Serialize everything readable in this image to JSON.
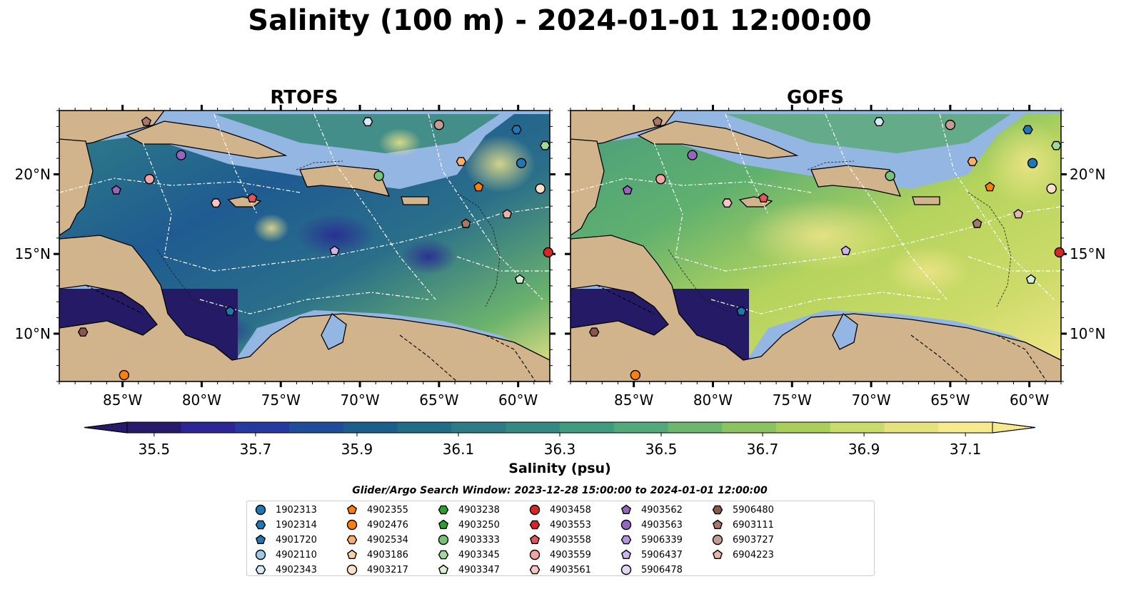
{
  "title": "Salinity (100 m) - 2024-01-01 12:00:00",
  "panels": [
    {
      "title": "RTOFS"
    },
    {
      "title": "GOFS"
    }
  ],
  "colorbar": {
    "label": "Salinity (psu)",
    "min": 35.5,
    "max": 37.1,
    "extend": "both",
    "tick_labels": [
      "35.5",
      "35.7",
      "35.9",
      "36.1",
      "36.3",
      "36.5",
      "36.7",
      "36.9",
      "37.1"
    ],
    "colors": [
      "#271a6c",
      "#2c2598",
      "#2639a0",
      "#1f4d99",
      "#1b5e8c",
      "#226d86",
      "#2d7b84",
      "#348a82",
      "#3f9a7e",
      "#52a878",
      "#6db66d",
      "#8ac35f",
      "#a9ce5a",
      "#c9db6a",
      "#e6e27e",
      "#f7e98d"
    ]
  },
  "search_window": "Glider/Argo Search Window: 2023-12-28 15:00:00 to 2024-01-01 12:00:00",
  "legend": [
    {
      "id": "1902313",
      "marker": "circle",
      "color": "#1f77b4"
    },
    {
      "id": "1902314",
      "marker": "hexagon",
      "color": "#1f77b4"
    },
    {
      "id": "4901720",
      "marker": "pentagon",
      "color": "#1f77b4"
    },
    {
      "id": "4902110",
      "marker": "circle",
      "color": "#9ecae9"
    },
    {
      "id": "4902343",
      "marker": "hexagon",
      "color": "#d6ebf7"
    },
    {
      "id": "4902355",
      "marker": "pentagon",
      "color": "#ff7f0e"
    },
    {
      "id": "4902476",
      "marker": "circle",
      "color": "#ff7f0e"
    },
    {
      "id": "4902534",
      "marker": "hexagon",
      "color": "#fdae6b"
    },
    {
      "id": "4903186",
      "marker": "pentagon",
      "color": "#fdd0a2"
    },
    {
      "id": "4903217",
      "marker": "circle",
      "color": "#fde0c5"
    },
    {
      "id": "4903238",
      "marker": "hexagon",
      "color": "#2ca02c"
    },
    {
      "id": "4903250",
      "marker": "pentagon",
      "color": "#2ca02c"
    },
    {
      "id": "4903333",
      "marker": "circle",
      "color": "#74c476"
    },
    {
      "id": "4903345",
      "marker": "hexagon",
      "color": "#a1d99b"
    },
    {
      "id": "4903347",
      "marker": "pentagon",
      "color": "#d9f0d3"
    },
    {
      "id": "4903458",
      "marker": "circle",
      "color": "#d62728"
    },
    {
      "id": "4903553",
      "marker": "hexagon",
      "color": "#d62728"
    },
    {
      "id": "4903558",
      "marker": "pentagon",
      "color": "#e15759"
    },
    {
      "id": "4903559",
      "marker": "circle",
      "color": "#f4a3a4"
    },
    {
      "id": "4903561",
      "marker": "hexagon",
      "color": "#fcc5c5"
    },
    {
      "id": "4903562",
      "marker": "pentagon",
      "color": "#9467bd"
    },
    {
      "id": "4903563",
      "marker": "circle",
      "color": "#9467bd"
    },
    {
      "id": "5906339",
      "marker": "hexagon",
      "color": "#b695e0"
    },
    {
      "id": "5906437",
      "marker": "pentagon",
      "color": "#cdb4eb"
    },
    {
      "id": "5906478",
      "marker": "circle",
      "color": "#e4d4f6"
    },
    {
      "id": "5906480",
      "marker": "hexagon",
      "color": "#8c564b"
    },
    {
      "id": "6903111",
      "marker": "pentagon",
      "color": "#a9776a"
    },
    {
      "id": "6903727",
      "marker": "circle",
      "color": "#c49c94"
    },
    {
      "id": "6904223",
      "marker": "pentagon",
      "color": "#e7b5a7"
    }
  ],
  "chart_data": [
    {
      "type": "heatmap",
      "title": "RTOFS",
      "x_ticks": [
        "85°W",
        "80°W",
        "75°W",
        "70°W",
        "65°W",
        "60°W"
      ],
      "x_tick_values": [
        -85,
        -80,
        -75,
        -70,
        -65,
        -60
      ],
      "y_ticks": [
        "10°N",
        "15°N",
        "20°N"
      ],
      "y_tick_values": [
        10,
        15,
        20
      ],
      "xlim": [
        -89,
        -58
      ],
      "ylim": [
        7,
        24
      ],
      "color_scale": [
        35.5,
        37.1
      ],
      "units": "psu",
      "floats": [
        {
          "id": "6903111",
          "lon": -83.5,
          "lat": 23.3
        },
        {
          "id": "4902343",
          "lon": -69.5,
          "lat": 23.3
        },
        {
          "id": "6903727",
          "lon": -65,
          "lat": 23.1
        },
        {
          "id": "1902314",
          "lon": -60.1,
          "lat": 22.8
        },
        {
          "id": "4903345",
          "lon": -58.3,
          "lat": 21.8
        },
        {
          "id": "4903563",
          "lon": -81.3,
          "lat": 21.2
        },
        {
          "id": "4902534",
          "lon": -63.6,
          "lat": 20.8
        },
        {
          "id": "1902313",
          "lon": -59.8,
          "lat": 20.7
        },
        {
          "id": "4903559",
          "lon": -83.3,
          "lat": 19.7
        },
        {
          "id": "4903333",
          "lon": -68.8,
          "lat": 19.9
        },
        {
          "id": "4902355",
          "lon": -62.5,
          "lat": 19.2
        },
        {
          "id": "4903217",
          "lon": -58.6,
          "lat": 19.1
        },
        {
          "id": "4903562",
          "lon": -85.4,
          "lat": 19.0
        },
        {
          "id": "4903561",
          "lon": -79.1,
          "lat": 18.2
        },
        {
          "id": "4903558",
          "lon": -76.8,
          "lat": 18.5
        },
        {
          "id": "6904223",
          "lon": -60.7,
          "lat": 17.5
        },
        {
          "id": "6903111",
          "lon": -63.3,
          "lat": 16.9
        },
        {
          "id": "5906437",
          "lon": -71.6,
          "lat": 15.2
        },
        {
          "id": "4903458",
          "lon": -58.1,
          "lat": 15.1
        },
        {
          "id": "4903347",
          "lon": -59.9,
          "lat": 13.4
        },
        {
          "id": "4901720",
          "lon": -78.2,
          "lat": 11.4
        },
        {
          "id": "5906480",
          "lon": -87.5,
          "lat": 10.1
        },
        {
          "id": "4902476",
          "lon": -84.9,
          "lat": 7.4
        }
      ]
    },
    {
      "type": "heatmap",
      "title": "GOFS",
      "x_ticks": [
        "85°W",
        "80°W",
        "75°W",
        "70°W",
        "65°W",
        "60°W"
      ],
      "x_tick_values": [
        -85,
        -80,
        -75,
        -70,
        -65,
        -60
      ],
      "y_ticks": [
        "10°N",
        "15°N",
        "20°N"
      ],
      "y_tick_values": [
        10,
        15,
        20
      ],
      "xlim": [
        -89,
        -58
      ],
      "ylim": [
        7,
        24
      ],
      "color_scale": [
        35.5,
        37.1
      ],
      "units": "psu",
      "floats": [
        {
          "id": "6903111",
          "lon": -83.5,
          "lat": 23.3
        },
        {
          "id": "4902343",
          "lon": -69.5,
          "lat": 23.3
        },
        {
          "id": "6903727",
          "lon": -65,
          "lat": 23.1
        },
        {
          "id": "1902314",
          "lon": -60.1,
          "lat": 22.8
        },
        {
          "id": "4903345",
          "lon": -58.3,
          "lat": 21.8
        },
        {
          "id": "4903563",
          "lon": -81.3,
          "lat": 21.2
        },
        {
          "id": "4902534",
          "lon": -63.6,
          "lat": 20.8
        },
        {
          "id": "1902313",
          "lon": -59.8,
          "lat": 20.7
        },
        {
          "id": "4903559",
          "lon": -83.3,
          "lat": 19.7
        },
        {
          "id": "4903333",
          "lon": -68.8,
          "lat": 19.9
        },
        {
          "id": "4902355",
          "lon": -62.5,
          "lat": 19.2
        },
        {
          "id": "4903217",
          "lon": -58.6,
          "lat": 19.1
        },
        {
          "id": "4903562",
          "lon": -85.4,
          "lat": 19.0
        },
        {
          "id": "4903561",
          "lon": -79.1,
          "lat": 18.2
        },
        {
          "id": "4903558",
          "lon": -76.8,
          "lat": 18.5
        },
        {
          "id": "6904223",
          "lon": -60.7,
          "lat": 17.5
        },
        {
          "id": "6903111",
          "lon": -63.3,
          "lat": 16.9
        },
        {
          "id": "5906437",
          "lon": -71.6,
          "lat": 15.2
        },
        {
          "id": "4903458",
          "lon": -58.1,
          "lat": 15.1
        },
        {
          "id": "4903347",
          "lon": -59.9,
          "lat": 13.4
        },
        {
          "id": "4901720",
          "lon": -78.2,
          "lat": 11.4
        },
        {
          "id": "5906480",
          "lon": -87.5,
          "lat": 10.1
        },
        {
          "id": "4902476",
          "lon": -84.9,
          "lat": 7.4
        }
      ]
    }
  ]
}
